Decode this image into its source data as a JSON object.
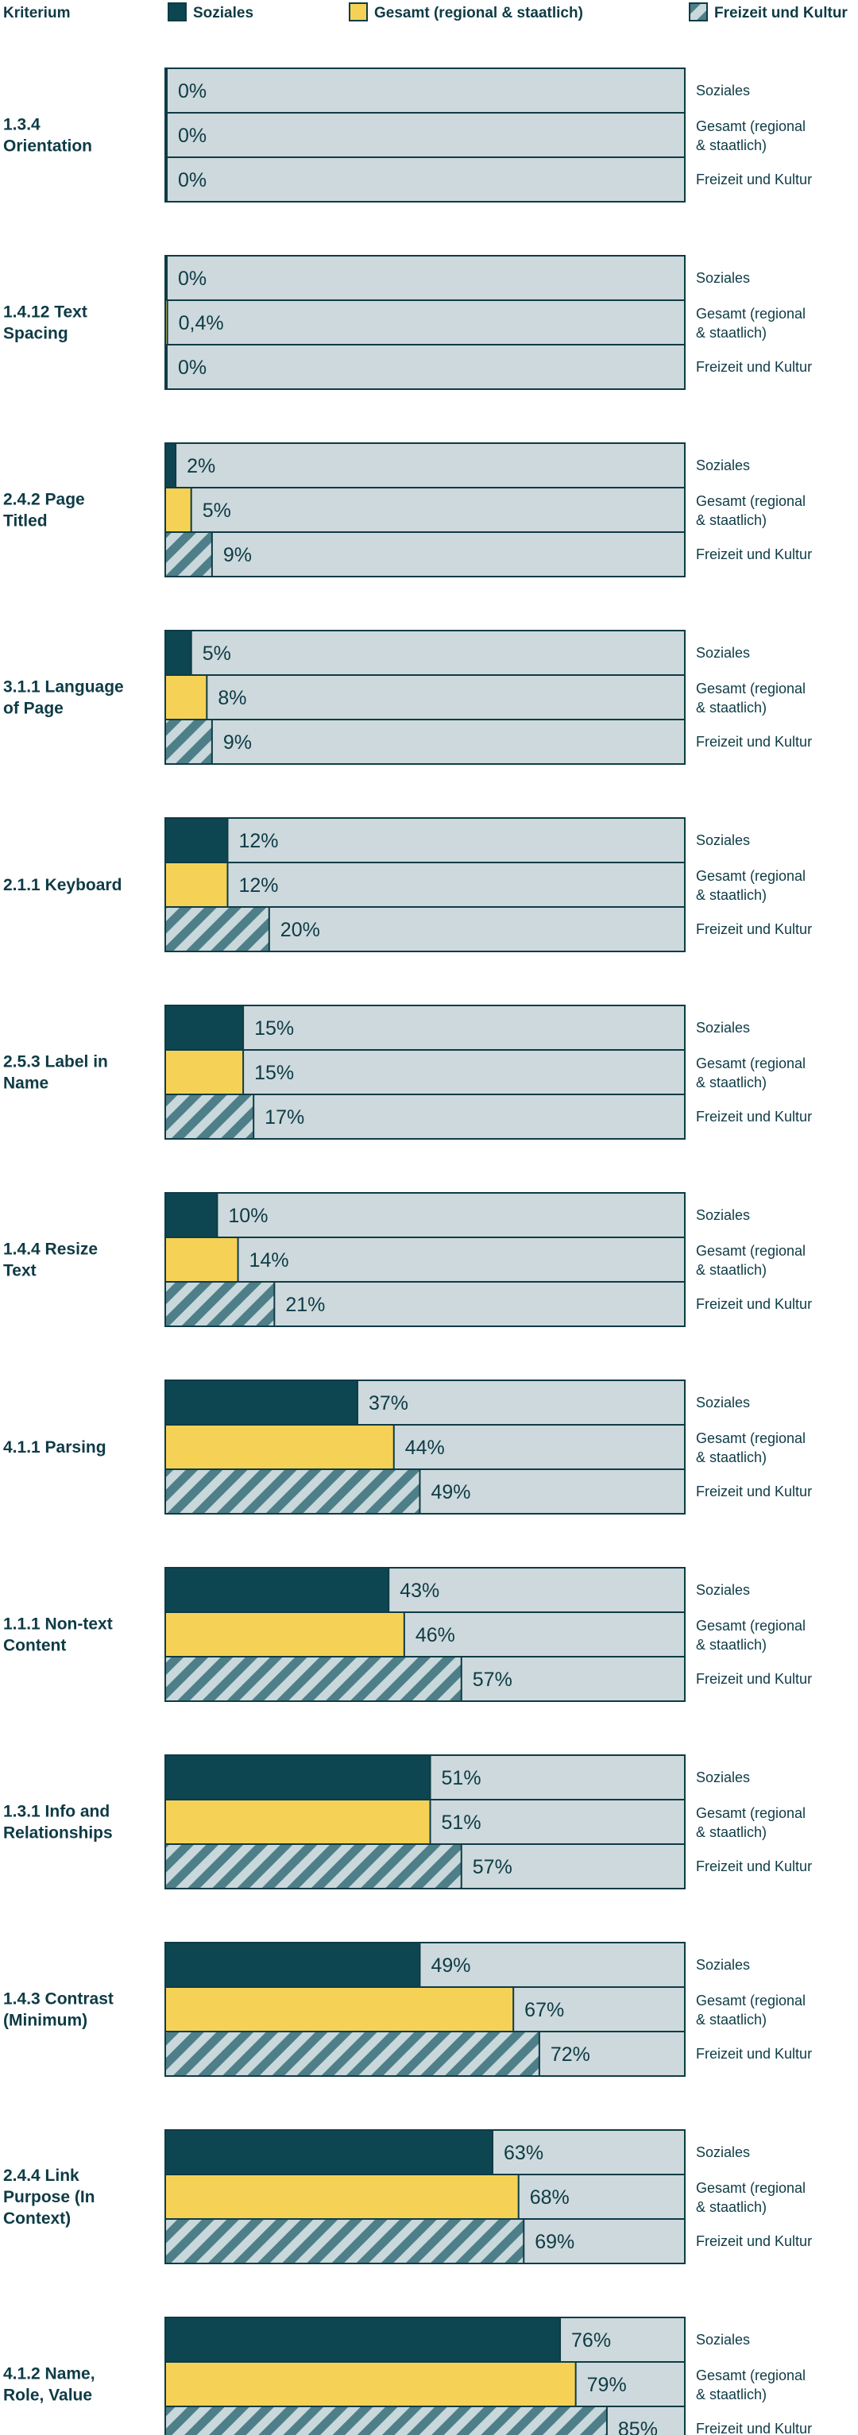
{
  "chart_data": {
    "type": "bar",
    "orientation": "horizontal",
    "title": "",
    "xlabel": "",
    "ylabel": "Kriterium",
    "xlim": [
      0,
      100
    ],
    "legend": {
      "header": "Kriterium",
      "placement": "top",
      "entries": [
        {
          "name": "Soziales",
          "color": "#0d4651",
          "pattern": "solid"
        },
        {
          "name": "Gesamt (regional & staatlich)",
          "color": "#f5d256",
          "pattern": "solid"
        },
        {
          "name": "Freizeit und Kultur",
          "color": "#4e7f89",
          "pattern": "striped"
        }
      ]
    },
    "row_labels": [
      "Soziales",
      "Gesamt (regional\n& staatlich)",
      "Freizeit und Kultur"
    ],
    "colors": {
      "soziales": "#0d4651",
      "gesamt": "#f5d256",
      "freizeit_stripe": "#4e7f89",
      "freizeit_bg": "#c9d8db",
      "track": "#cdd9dc",
      "border": "#0e3b46",
      "text": "#0e3b46"
    },
    "groups": [
      {
        "label": "1.3.4 Orientation",
        "values": [
          0,
          0,
          0
        ],
        "value_labels": [
          "0%",
          "0%",
          "0%"
        ]
      },
      {
        "label": "1.4.12 Text Spacing",
        "values": [
          0,
          0.4,
          0
        ],
        "value_labels": [
          "0%",
          "0,4%",
          "0%"
        ]
      },
      {
        "label": "2.4.2 Page Titled",
        "values": [
          2,
          5,
          9
        ],
        "value_labels": [
          "2%",
          "5%",
          "9%"
        ]
      },
      {
        "label": "3.1.1 Language of Page",
        "values": [
          5,
          8,
          9
        ],
        "value_labels": [
          "5%",
          "8%",
          "9%"
        ]
      },
      {
        "label": "2.1.1 Keyboard",
        "values": [
          12,
          12,
          20
        ],
        "value_labels": [
          "12%",
          "12%",
          "20%"
        ]
      },
      {
        "label": "2.5.3 Label in Name",
        "values": [
          15,
          15,
          17
        ],
        "value_labels": [
          "15%",
          "15%",
          "17%"
        ]
      },
      {
        "label": "1.4.4 Resize Text",
        "values": [
          10,
          14,
          21
        ],
        "value_labels": [
          "10%",
          "14%",
          "21%"
        ]
      },
      {
        "label": "4.1.1 Parsing",
        "values": [
          37,
          44,
          49
        ],
        "value_labels": [
          "37%",
          "44%",
          "49%"
        ]
      },
      {
        "label": "1.1.1 Non-text Content",
        "values": [
          43,
          46,
          57
        ],
        "value_labels": [
          "43%",
          "46%",
          "57%"
        ]
      },
      {
        "label": "1.3.1 Info and Relationships",
        "values": [
          51,
          51,
          57
        ],
        "value_labels": [
          "51%",
          "51%",
          "57%"
        ]
      },
      {
        "label": "1.4.3 Contrast (Minimum)",
        "values": [
          49,
          67,
          72
        ],
        "value_labels": [
          "49%",
          "67%",
          "72%"
        ]
      },
      {
        "label": "2.4.4 Link Purpose (In Context)",
        "values": [
          63,
          68,
          69
        ],
        "value_labels": [
          "63%",
          "68%",
          "69%"
        ]
      },
      {
        "label": "4.1.2 Name, Role, Value",
        "values": [
          76,
          79,
          85
        ],
        "value_labels": [
          "76%",
          "79%",
          "85%"
        ]
      }
    ]
  }
}
